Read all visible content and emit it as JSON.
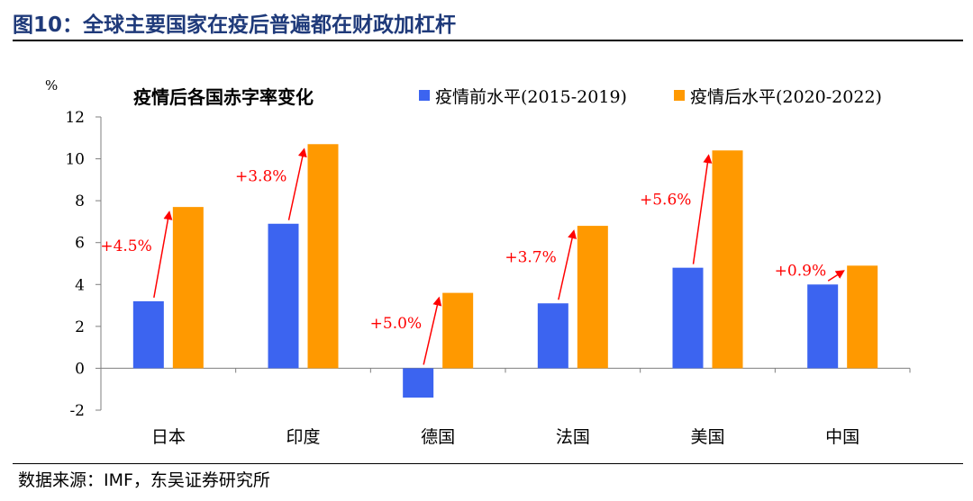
{
  "figure": {
    "title": "图10：全球主要国家在疫后普遍都在财政加杠杆",
    "source": "数据来源：IMF，东吴证券研究所"
  },
  "colors": {
    "pre": "#3c64f0",
    "post": "#ff9900",
    "arrow": "#ff0000",
    "title": "#1f3a7a"
  },
  "chart_data": {
    "type": "bar",
    "title": "疫情后各国赤字率变化",
    "unit": "%",
    "categories": [
      "日本",
      "印度",
      "德国",
      "法国",
      "美国",
      "中国"
    ],
    "series": [
      {
        "name": "疫情前水平(2015-2019)",
        "values": [
          3.2,
          6.9,
          -1.4,
          3.1,
          4.8,
          4.0
        ]
      },
      {
        "name": "疫情后水平(2020-2022)",
        "values": [
          7.7,
          10.7,
          3.6,
          6.8,
          10.4,
          4.9
        ]
      }
    ],
    "annotations": [
      "+4.5%",
      "+3.8%",
      "+5.0%",
      "+3.7%",
      "+5.6%",
      "+0.9%"
    ],
    "ylim": [
      -2,
      12
    ],
    "yticks": [
      -2,
      0,
      2,
      4,
      6,
      8,
      10,
      12
    ],
    "legend_position": "top-right",
    "grid": false
  }
}
